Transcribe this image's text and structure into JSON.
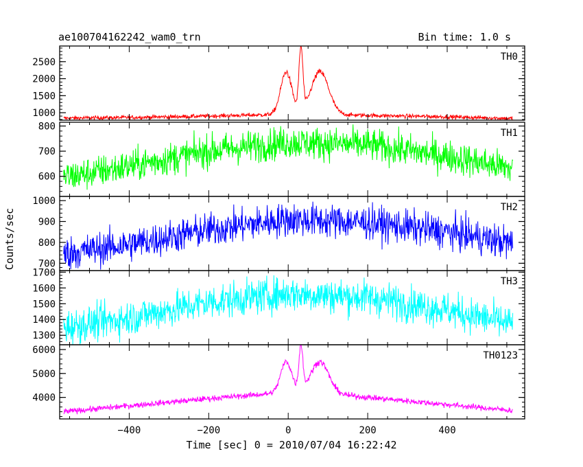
{
  "header": {
    "title": "ae100704162242_wam0_trn",
    "bin_time": "Bin time: 1.0 s"
  },
  "chart_data": {
    "type": "line",
    "xlabel": "Time [sec] 0 = 2010/07/04 16:22:42",
    "ylabel": "Counts/sec",
    "xlim": [
      -575,
      595
    ],
    "xticks": [
      -400,
      -200,
      0,
      200,
      400
    ],
    "xtick_labels": [
      "−400",
      "−200",
      "0",
      "200",
      "400"
    ],
    "x_minor_step": 50,
    "data_xrange": [
      -565,
      565
    ],
    "panels": [
      {
        "label": "TH0",
        "color": "#ff0000",
        "ylim": [
          780,
          2960
        ],
        "yticks": [
          1000,
          1500,
          2000,
          2500
        ],
        "minor_step": 100,
        "baseline_anchors": [
          [
            -565,
            840
          ],
          [
            -400,
            860
          ],
          [
            -200,
            900
          ],
          [
            -50,
            940
          ],
          [
            50,
            960
          ],
          [
            200,
            920
          ],
          [
            400,
            880
          ],
          [
            565,
            830
          ]
        ],
        "noise": 30,
        "flare": [
          {
            "center": -5,
            "height": 1250,
            "width": 14
          },
          {
            "center": 32,
            "height": 1850,
            "width": 5
          },
          {
            "center": 80,
            "height": 1250,
            "width": 22
          }
        ]
      },
      {
        "label": "TH1",
        "color": "#00ff00",
        "ylim": [
          520,
          815
        ],
        "yticks": [
          600,
          700,
          800
        ],
        "minor_step": 20,
        "baseline_anchors": [
          [
            -565,
            595
          ],
          [
            -400,
            640
          ],
          [
            -200,
            700
          ],
          [
            0,
            735
          ],
          [
            200,
            725
          ],
          [
            400,
            680
          ],
          [
            565,
            630
          ]
        ],
        "noise": 32
      },
      {
        "label": "TH2",
        "color": "#0000ff",
        "ylim": [
          665,
          1020
        ],
        "yticks": [
          700,
          800,
          900,
          1000
        ],
        "minor_step": 20,
        "baseline_anchors": [
          [
            -565,
            745
          ],
          [
            -400,
            790
          ],
          [
            -200,
            860
          ],
          [
            0,
            910
          ],
          [
            200,
            895
          ],
          [
            400,
            850
          ],
          [
            565,
            795
          ]
        ],
        "noise": 40
      },
      {
        "label": "TH3",
        "color": "#00ffff",
        "ylim": [
          1240,
          1710
        ],
        "yticks": [
          1300,
          1400,
          1500,
          1600,
          1700
        ],
        "minor_step": 20,
        "baseline_anchors": [
          [
            -565,
            1350
          ],
          [
            -400,
            1410
          ],
          [
            -200,
            1510
          ],
          [
            0,
            1565
          ],
          [
            200,
            1540
          ],
          [
            400,
            1460
          ],
          [
            565,
            1370
          ]
        ],
        "noise": 55
      },
      {
        "label": "TH0123",
        "color": "#ff00ff",
        "ylim": [
          3100,
          6200
        ],
        "yticks": [
          4000,
          5000,
          6000
        ],
        "minor_step": 200,
        "baseline_anchors": [
          [
            -565,
            3400
          ],
          [
            -400,
            3650
          ],
          [
            -200,
            3950
          ],
          [
            -50,
            4150
          ],
          [
            50,
            4250
          ],
          [
            200,
            4000
          ],
          [
            400,
            3700
          ],
          [
            565,
            3450
          ]
        ],
        "noise": 60,
        "flare": [
          {
            "center": -5,
            "height": 1300,
            "width": 14
          },
          {
            "center": 32,
            "height": 1850,
            "width": 5
          },
          {
            "center": 80,
            "height": 1300,
            "width": 22
          }
        ]
      }
    ]
  }
}
